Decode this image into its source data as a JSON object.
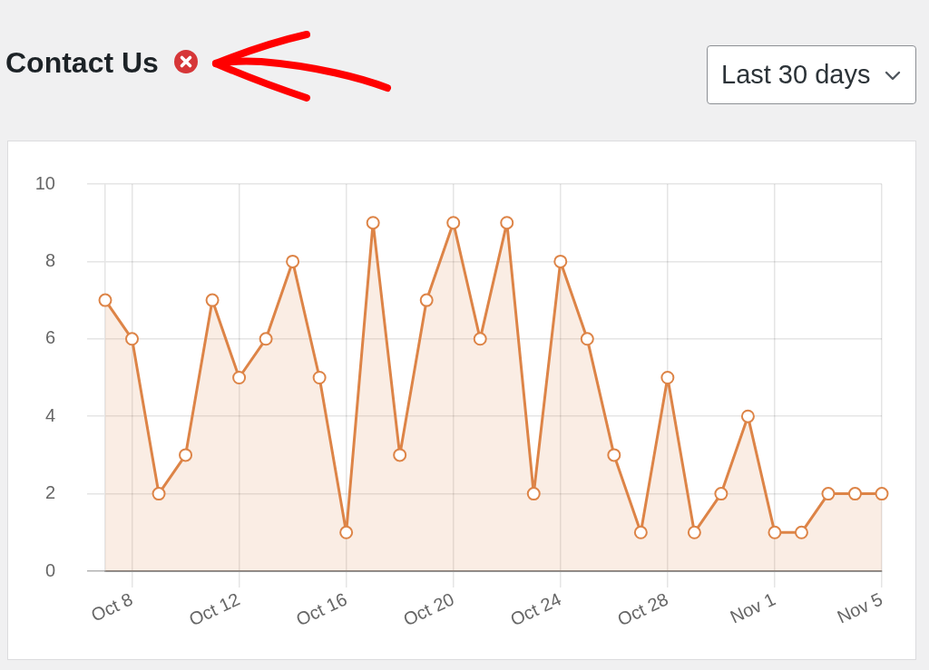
{
  "chart_data": {
    "type": "area",
    "title": "Contact Us",
    "annotations": [
      "Last 30 days"
    ],
    "x": [
      "--10-07",
      "--10-08",
      "--10-09",
      "--10-10",
      "--10-11",
      "--10-12",
      "--10-13",
      "--10-14",
      "--10-15",
      "--10-16",
      "--10-17",
      "--10-18",
      "--10-19",
      "--10-20",
      "--10-21",
      "--10-22",
      "--10-23",
      "--10-24",
      "--10-25",
      "--10-26",
      "--10-27",
      "--10-28",
      "--10-29",
      "--10-30",
      "--10-31",
      "--11-01",
      "--11-02",
      "--11-03",
      "--11-04",
      "--11-05"
    ],
    "values": [
      7,
      6,
      2,
      3,
      7,
      5,
      6,
      8,
      5,
      1,
      9,
      3,
      7,
      9,
      6,
      9,
      2,
      8,
      6,
      3,
      1,
      5,
      1,
      2,
      4,
      1,
      1,
      2,
      2,
      2
    ],
    "color": "#dd8447",
    "xlim": [
      "--10-07",
      "--11-05"
    ],
    "xticks": [
      {
        "value": "--10-08",
        "label": "Oct 8"
      },
      {
        "value": "--10-12",
        "label": "Oct 12"
      },
      {
        "value": "--10-16",
        "label": "Oct 16"
      },
      {
        "value": "--10-20",
        "label": "Oct 20"
      },
      {
        "value": "--10-24",
        "label": "Oct 24"
      },
      {
        "value": "--10-28",
        "label": "Oct 28"
      },
      {
        "value": "--11-01",
        "label": "Nov 1"
      },
      {
        "value": "--11-05",
        "label": "Nov 5"
      }
    ],
    "ylim": [
      0,
      10
    ],
    "yticks": [
      0,
      2,
      4,
      6,
      8,
      10
    ],
    "grid": true,
    "marker": "circle"
  }
}
